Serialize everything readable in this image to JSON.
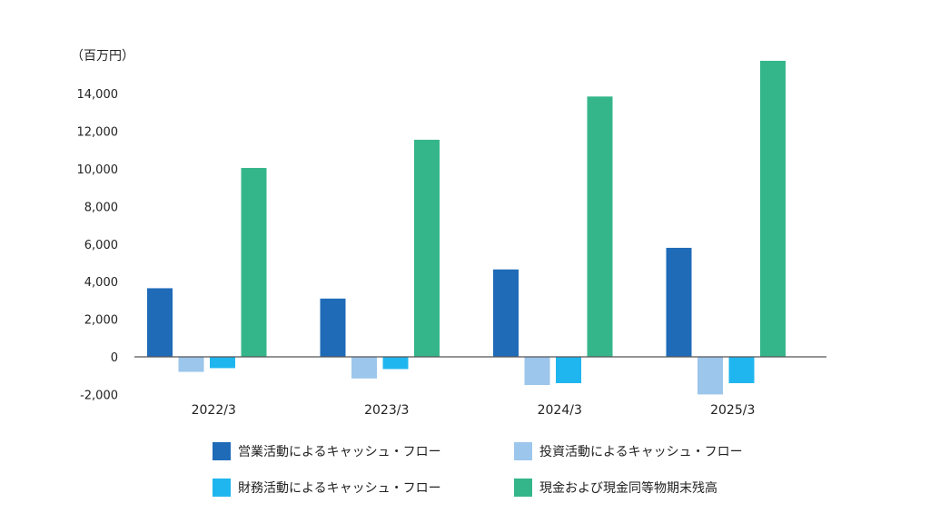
{
  "colors": {
    "operating": "#1f6bb8",
    "investing": "#9cc6eb",
    "financing": "#1fb6ef",
    "cash": "#35b68a",
    "axis": "#555555"
  },
  "chart_data": {
    "type": "bar",
    "unit_label": "（百万円）",
    "categories": [
      "2022/3",
      "2023/3",
      "2024/3",
      "2025/3"
    ],
    "ylim": [
      -2000,
      16000
    ],
    "yticks": [
      14000,
      12000,
      10000,
      8000,
      6000,
      4000,
      2000,
      0,
      -2000
    ],
    "ytick_labels": [
      "14,000",
      "12,000",
      "10,000",
      "8,000",
      "6,000",
      "4,000",
      "2,000",
      "0",
      "-2,000"
    ],
    "grid": false,
    "legend_position": "bottom",
    "series": [
      {
        "name": "営業活動によるキャッシュ・フロー",
        "color_key": "operating",
        "values": [
          3650,
          3100,
          4650,
          5800
        ]
      },
      {
        "name": "投資活動によるキャッシュ・フロー",
        "color_key": "investing",
        "values": [
          -800,
          -1150,
          -1500,
          -2000
        ]
      },
      {
        "name": "財務活動によるキャッシュ・フロー",
        "color_key": "financing",
        "values": [
          -600,
          -650,
          -1400,
          -1400
        ]
      },
      {
        "name": "現金および現金同等物期末残高",
        "color_key": "cash",
        "values": [
          10050,
          11550,
          13850,
          15750
        ]
      }
    ]
  }
}
